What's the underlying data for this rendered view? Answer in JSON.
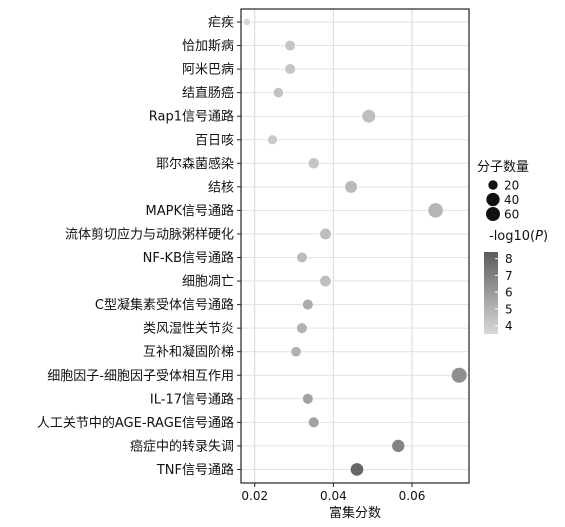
{
  "chart_data": {
    "type": "scatter",
    "xlabel": "富集分数",
    "ylabel": "",
    "xlim": [
      0.0165,
      0.0745
    ],
    "xticks": [
      0.02,
      0.04,
      0.06
    ],
    "xtick_labels": [
      "0.02",
      "0.04",
      "0.06"
    ],
    "grid": true,
    "categories": [
      "疟疾",
      "恰加斯病",
      "阿米巴病",
      "结直肠癌",
      "Rap1信号通路",
      "百日咳",
      "耶尔森菌感染",
      "结核",
      "MAPK信号通路",
      "流体剪切应力与动脉粥样硬化",
      "NF-KB信号通路",
      "细胞凋亡",
      "C型凝集素受体信号通路",
      "类风湿性关节炎",
      "互补和凝固阶梯",
      "细胞因子-细胞因子受体相互作用",
      "IL-17信号通路",
      "人工关节中的AGE-RAGE信号通路",
      "癌症中的转录失调",
      "TNF信号通路"
    ],
    "x": [
      0.018,
      0.029,
      0.029,
      0.026,
      0.049,
      0.0245,
      0.035,
      0.0445,
      0.066,
      0.038,
      0.032,
      0.038,
      0.0335,
      0.032,
      0.0305,
      0.072,
      0.0335,
      0.035,
      0.0565,
      0.046
    ],
    "count": [
      12,
      26,
      26,
      24,
      42,
      22,
      28,
      36,
      52,
      30,
      26,
      30,
      26,
      26,
      24,
      56,
      26,
      26,
      38,
      40
    ],
    "neg_log10_p": [
      3.6,
      4.3,
      4.3,
      4.4,
      4.5,
      4.1,
      4.3,
      4.7,
      4.9,
      4.6,
      4.6,
      4.5,
      5.3,
      5.0,
      5.1,
      6.4,
      5.6,
      5.6,
      6.9,
      8.0
    ],
    "size_legend": {
      "title": "分子数量",
      "values": [
        20,
        40,
        60
      ],
      "labels": [
        "20",
        "40",
        "60"
      ]
    },
    "color_legend": {
      "title_prefix": "-log10(",
      "title_italic": "P",
      "title_suffix": ")",
      "ticks": [
        8,
        7,
        6,
        5,
        4
      ],
      "tick_labels": [
        "8",
        "7",
        "6",
        "5",
        "4"
      ],
      "range": [
        3.5,
        8.4
      ],
      "colors": [
        "#d9d9d9",
        "#5c5c5c"
      ]
    },
    "legend_position": "right"
  }
}
